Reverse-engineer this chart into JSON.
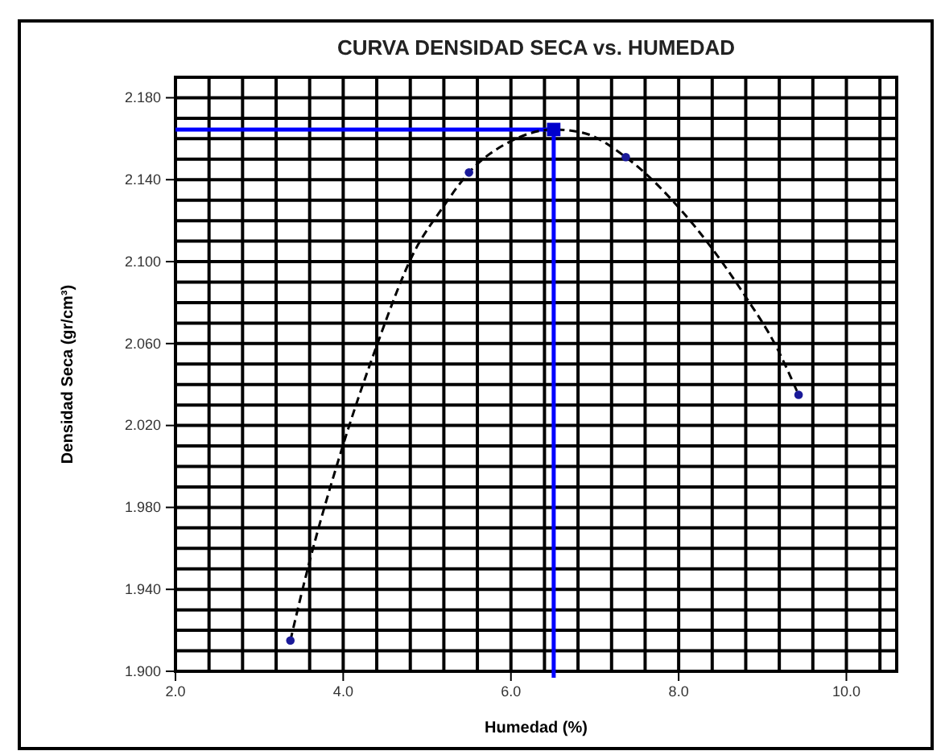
{
  "chart_data": {
    "type": "scatter",
    "title": "CURVA DENSIDAD SECA vs. HUMEDAD",
    "xlabel": "Humedad (%)",
    "ylabel": "Densidad Seca (gr/cm³)",
    "xlim": [
      2.0,
      10.6
    ],
    "ylim": [
      1.9,
      2.19
    ],
    "xticks": [
      {
        "value": 2.0,
        "label": "2.0"
      },
      {
        "value": 2.4,
        "label": null
      },
      {
        "value": 2.8,
        "label": null
      },
      {
        "value": 3.2,
        "label": null
      },
      {
        "value": 3.6,
        "label": null
      },
      {
        "value": 4.0,
        "label": "4.0"
      },
      {
        "value": 4.4,
        "label": null
      },
      {
        "value": 4.8,
        "label": null
      },
      {
        "value": 5.2,
        "label": null
      },
      {
        "value": 5.6,
        "label": null
      },
      {
        "value": 6.0,
        "label": "6.0"
      },
      {
        "value": 6.4,
        "label": null
      },
      {
        "value": 6.8,
        "label": null
      },
      {
        "value": 7.2,
        "label": null
      },
      {
        "value": 7.6,
        "label": null
      },
      {
        "value": 8.0,
        "label": "8.0"
      },
      {
        "value": 8.4,
        "label": null
      },
      {
        "value": 8.8,
        "label": null
      },
      {
        "value": 9.2,
        "label": null
      },
      {
        "value": 9.6,
        "label": null
      },
      {
        "value": 10.0,
        "label": "10.0"
      },
      {
        "value": 10.4,
        "label": null
      }
    ],
    "yticks": [
      {
        "value": 1.9,
        "label": "1.900"
      },
      {
        "value": 1.91,
        "label": null
      },
      {
        "value": 1.92,
        "label": null
      },
      {
        "value": 1.93,
        "label": null
      },
      {
        "value": 1.94,
        "label": "1.940"
      },
      {
        "value": 1.95,
        "label": null
      },
      {
        "value": 1.96,
        "label": null
      },
      {
        "value": 1.97,
        "label": null
      },
      {
        "value": 1.98,
        "label": "1.980"
      },
      {
        "value": 1.99,
        "label": null
      },
      {
        "value": 2.0,
        "label": null
      },
      {
        "value": 2.01,
        "label": null
      },
      {
        "value": 2.02,
        "label": "2.020"
      },
      {
        "value": 2.03,
        "label": null
      },
      {
        "value": 2.04,
        "label": null
      },
      {
        "value": 2.05,
        "label": null
      },
      {
        "value": 2.06,
        "label": "2.060"
      },
      {
        "value": 2.07,
        "label": null
      },
      {
        "value": 2.08,
        "label": null
      },
      {
        "value": 2.09,
        "label": null
      },
      {
        "value": 2.1,
        "label": "2.100"
      },
      {
        "value": 2.11,
        "label": null
      },
      {
        "value": 2.12,
        "label": null
      },
      {
        "value": 2.13,
        "label": null
      },
      {
        "value": 2.14,
        "label": "2.140"
      },
      {
        "value": 2.15,
        "label": null
      },
      {
        "value": 2.16,
        "label": null
      },
      {
        "value": 2.17,
        "label": null
      },
      {
        "value": 2.18,
        "label": "2.180"
      },
      {
        "value": 2.19,
        "label": null
      }
    ],
    "grid": true,
    "ref_lines": [
      {
        "axis": "y",
        "value": 2.1645,
        "color": "#0000ff"
      },
      {
        "axis": "x",
        "value": 6.51,
        "color": "#0000ff"
      }
    ],
    "series": [
      {
        "type": "line",
        "color": "#000000",
        "line_style": "dashed",
        "marker": "none",
        "x": [
          3.37,
          3.57,
          3.95,
          4.4,
          4.85,
          5.18,
          5.5,
          6.01,
          6.51,
          6.85,
          7.37,
          8.01,
          8.78,
          9.17,
          9.43
        ],
        "values": [
          1.915,
          1.949,
          2.004,
          2.059,
          2.105,
          2.126,
          2.1435,
          2.159,
          2.1645,
          2.163,
          2.151,
          2.126,
          2.084,
          2.058,
          2.035
        ]
      },
      {
        "color": "#1a1a99",
        "marker": "circle",
        "x": [
          3.37,
          5.5,
          7.37,
          9.43
        ],
        "values": [
          1.915,
          2.1435,
          2.151,
          2.035
        ]
      },
      {
        "color": "#0000cc",
        "marker": "square",
        "x": [
          6.51
        ],
        "values": [
          2.1645
        ]
      }
    ]
  }
}
